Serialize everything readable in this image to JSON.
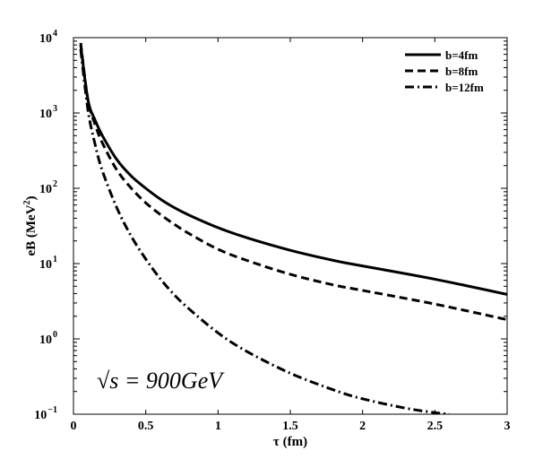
{
  "chart_data": {
    "type": "line",
    "title": "",
    "xlabel": "τ (fm)",
    "ylabel_base": "eB (MeV",
    "ylabel_exp": "2",
    "ylabel_close": ")",
    "xlim": [
      0,
      3
    ],
    "ylim": [
      0.1,
      10000
    ],
    "yscale": "log",
    "grid": false,
    "legend_position": "top-right",
    "x_ticks": [
      {
        "value": 0,
        "label": "0"
      },
      {
        "value": 0.5,
        "label": "0.5"
      },
      {
        "value": 1,
        "label": "1"
      },
      {
        "value": 1.5,
        "label": "1.5"
      },
      {
        "value": 2,
        "label": "2"
      },
      {
        "value": 2.5,
        "label": "2.5"
      },
      {
        "value": 3,
        "label": "3"
      }
    ],
    "y_ticks": [
      {
        "value": 0.1,
        "base": "10",
        "exp": "−1"
      },
      {
        "value": 1,
        "base": "10",
        "exp": "0"
      },
      {
        "value": 10,
        "base": "10",
        "exp": "1"
      },
      {
        "value": 100,
        "base": "10",
        "exp": "2"
      },
      {
        "value": 1000,
        "base": "10",
        "exp": "3"
      },
      {
        "value": 10000,
        "base": "10",
        "exp": "4"
      }
    ],
    "annotation": "√s = 900GeV",
    "series": [
      {
        "name": "b=4fm",
        "style": "solid",
        "x": [
          0.05,
          0.1,
          0.15,
          0.2,
          0.3,
          0.4,
          0.5,
          0.6,
          0.7,
          0.8,
          1.0,
          1.2,
          1.5,
          1.8,
          2.0,
          2.5,
          3.0
        ],
        "y": [
          8000,
          1500,
          800,
          500,
          240,
          145,
          100,
          72,
          55,
          44,
          30,
          22,
          15,
          11,
          9.3,
          6.2,
          3.9
        ]
      },
      {
        "name": "b=8fm",
        "style": "dashed",
        "x": [
          0.05,
          0.1,
          0.15,
          0.2,
          0.3,
          0.4,
          0.5,
          0.6,
          0.7,
          0.8,
          1.0,
          1.2,
          1.5,
          1.8,
          2.0,
          2.5,
          3.0
        ],
        "y": [
          8500,
          1500,
          700,
          400,
          175,
          100,
          64,
          45,
          33,
          25,
          15.5,
          11,
          7.2,
          5.2,
          4.4,
          2.9,
          1.8
        ]
      },
      {
        "name": "b=12fm",
        "style": "dashdot",
        "x": [
          0.05,
          0.1,
          0.15,
          0.2,
          0.3,
          0.4,
          0.5,
          0.6,
          0.7,
          0.8,
          1.0,
          1.2,
          1.5,
          1.8,
          2.0,
          2.3,
          2.5,
          2.6
        ],
        "y": [
          7000,
          1100,
          380,
          170,
          55,
          23,
          11.5,
          6.3,
          3.8,
          2.5,
          1.2,
          0.68,
          0.35,
          0.21,
          0.16,
          0.12,
          0.105,
          0.1
        ]
      }
    ]
  }
}
